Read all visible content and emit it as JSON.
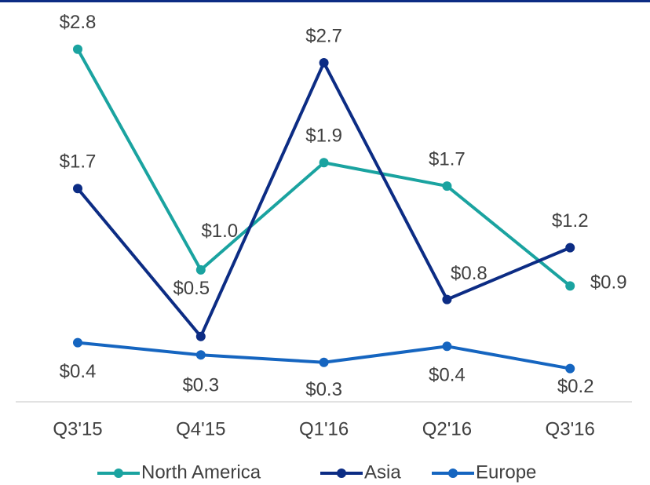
{
  "chart_data": {
    "type": "line",
    "categories": [
      "Q3'15",
      "Q4'15",
      "Q1'16",
      "Q2'16",
      "Q3'16"
    ],
    "series": [
      {
        "name": "North America",
        "color": "#1aa3a0",
        "values": [
          2.79,
          1.0,
          1.87,
          1.68,
          0.87
        ],
        "value_labels": [
          "$2.8",
          "$1.0",
          "$1.9",
          "$1.7",
          "$0.9"
        ]
      },
      {
        "name": "Asia",
        "color": "#0c2c84",
        "values": [
          1.66,
          0.46,
          2.68,
          0.76,
          1.18
        ],
        "value_labels": [
          "$1.7",
          "$0.5",
          "$2.7",
          "$0.8",
          "$1.2"
        ]
      },
      {
        "name": "Europe",
        "color": "#1565c0",
        "values": [
          0.41,
          0.31,
          0.25,
          0.38,
          0.2
        ],
        "value_labels": [
          "$0.4",
          "$0.3",
          "$0.3",
          "$0.4",
          "$0.2"
        ]
      }
    ],
    "ylim": [
      -0.07,
      3.1
    ],
    "legend": "bottom"
  }
}
